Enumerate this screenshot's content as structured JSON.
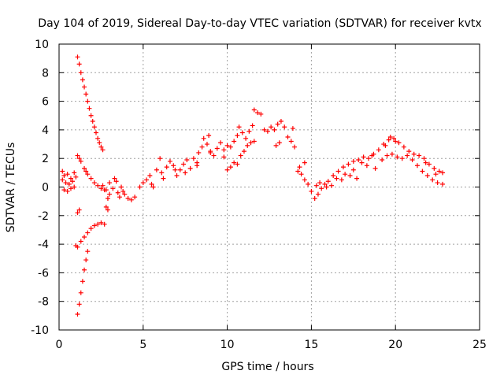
{
  "chart_data": {
    "type": "scatter",
    "title": "Day 104 of 2019, Sidereal Day-to-day VTEC variation (SDTVAR) for receiver kvtx",
    "xlabel": "GPS time / hours",
    "ylabel": "SDTVAR / TECUs",
    "xlim": [
      0,
      25
    ],
    "ylim": [
      -10,
      10
    ],
    "xticks": [
      "0",
      "5",
      "10",
      "15",
      "20",
      "25"
    ],
    "yticks": [
      "-10",
      "-8",
      "-6",
      "-4",
      "-2",
      "0",
      "2",
      "4",
      "6",
      "8",
      "10"
    ],
    "grid": true,
    "marker": "+",
    "color": "#ff0000",
    "series": [
      {
        "name": "main",
        "points": [
          [
            0.2,
            0.5
          ],
          [
            0.3,
            0.8
          ],
          [
            0.4,
            0.3
          ],
          [
            0.5,
            0.9
          ],
          [
            0.6,
            0.2
          ],
          [
            0.7,
            0.6
          ],
          [
            0.8,
            0.4
          ],
          [
            0.9,
            0.0
          ],
          [
            1.0,
            0.7
          ],
          [
            0.3,
            -0.2
          ],
          [
            0.5,
            -0.3
          ],
          [
            0.7,
            -0.1
          ],
          [
            0.2,
            1.1
          ],
          [
            0.9,
            1.0
          ],
          [
            2.6,
            0.1
          ],
          [
            2.8,
            -0.2
          ],
          [
            3.0,
            0.3
          ],
          [
            3.2,
            -0.1
          ],
          [
            3.4,
            0.4
          ],
          [
            3.5,
            -0.4
          ],
          [
            3.7,
            0.0
          ],
          [
            3.9,
            -0.5
          ],
          [
            4.1,
            -0.8
          ],
          [
            4.3,
            -0.9
          ],
          [
            4.5,
            -0.7
          ],
          [
            3.0,
            -0.5
          ],
          [
            3.3,
            0.6
          ],
          [
            3.6,
            -0.7
          ],
          [
            2.9,
            -0.8
          ],
          [
            3.8,
            -0.3
          ],
          [
            4.8,
            0.0
          ],
          [
            5.0,
            0.3
          ],
          [
            5.2,
            0.5
          ],
          [
            5.4,
            0.8
          ],
          [
            5.5,
            0.2
          ],
          [
            5.6,
            0.0
          ],
          [
            5.8,
            1.2
          ],
          [
            6.0,
            2.0
          ],
          [
            6.1,
            1.0
          ],
          [
            6.2,
            0.6
          ],
          [
            6.4,
            1.4
          ],
          [
            6.6,
            1.8
          ],
          [
            6.8,
            1.5
          ],
          [
            7.0,
            0.8
          ],
          [
            7.2,
            1.2
          ],
          [
            7.4,
            1.6
          ],
          [
            7.6,
            1.9
          ],
          [
            7.8,
            1.3
          ],
          [
            8.0,
            2.0
          ],
          [
            8.2,
            1.7
          ],
          [
            8.3,
            2.4
          ],
          [
            8.5,
            2.8
          ],
          [
            8.6,
            3.4
          ],
          [
            8.8,
            3.0
          ],
          [
            8.9,
            3.6
          ],
          [
            9.0,
            2.5
          ],
          [
            9.2,
            2.2
          ],
          [
            9.4,
            2.7
          ],
          [
            9.6,
            3.1
          ],
          [
            9.8,
            2.6
          ],
          [
            10.0,
            2.9
          ],
          [
            10.2,
            2.8
          ],
          [
            10.4,
            3.2
          ],
          [
            10.6,
            3.6
          ],
          [
            10.7,
            4.2
          ],
          [
            10.9,
            3.8
          ],
          [
            11.1,
            3.4
          ],
          [
            11.3,
            3.9
          ],
          [
            11.5,
            4.3
          ],
          [
            11.6,
            5.4
          ],
          [
            11.8,
            5.2
          ],
          [
            12.0,
            5.1
          ],
          [
            12.2,
            4.0
          ],
          [
            12.4,
            3.9
          ],
          [
            12.6,
            4.2
          ],
          [
            12.8,
            4.0
          ],
          [
            13.0,
            4.4
          ],
          [
            13.2,
            4.6
          ],
          [
            13.4,
            4.2
          ],
          [
            13.6,
            3.5
          ],
          [
            13.8,
            3.2
          ],
          [
            14.0,
            2.8
          ],
          [
            12.9,
            2.9
          ],
          [
            13.1,
            3.1
          ],
          [
            13.9,
            4.1
          ],
          [
            10.0,
            1.2
          ],
          [
            10.2,
            1.4
          ],
          [
            10.4,
            1.7
          ],
          [
            10.6,
            1.6
          ],
          [
            10.8,
            2.2
          ],
          [
            11.0,
            2.5
          ],
          [
            11.2,
            2.9
          ],
          [
            11.4,
            3.1
          ],
          [
            11.6,
            3.2
          ],
          [
            8.2,
            1.5
          ],
          [
            9.0,
            2.4
          ],
          [
            9.8,
            2.1
          ],
          [
            7.5,
            1.0
          ],
          [
            6.9,
            1.2
          ],
          [
            14.2,
            1.1
          ],
          [
            14.4,
            0.9
          ],
          [
            14.6,
            0.5
          ],
          [
            14.8,
            0.2
          ],
          [
            15.0,
            -0.3
          ],
          [
            15.2,
            -0.8
          ],
          [
            15.4,
            -0.5
          ],
          [
            15.6,
            -0.1
          ],
          [
            15.8,
            0.2
          ],
          [
            16.0,
            0.4
          ],
          [
            16.3,
            0.8
          ],
          [
            16.6,
            1.1
          ],
          [
            16.9,
            1.4
          ],
          [
            17.2,
            1.6
          ],
          [
            17.5,
            1.8
          ],
          [
            17.8,
            1.9
          ],
          [
            18.1,
            2.1
          ],
          [
            18.4,
            2.0
          ],
          [
            18.7,
            2.3
          ],
          [
            19.0,
            2.6
          ],
          [
            19.3,
            3.0
          ],
          [
            19.6,
            3.3
          ],
          [
            19.9,
            3.4
          ],
          [
            20.2,
            3.1
          ],
          [
            20.5,
            2.8
          ],
          [
            20.8,
            2.5
          ],
          [
            21.1,
            2.3
          ],
          [
            21.4,
            2.2
          ],
          [
            21.7,
            2.0
          ],
          [
            22.0,
            1.6
          ],
          [
            22.3,
            1.3
          ],
          [
            22.6,
            1.1
          ],
          [
            22.8,
            1.0
          ],
          [
            14.3,
            1.4
          ],
          [
            14.6,
            1.7
          ],
          [
            15.3,
            0.1
          ],
          [
            15.9,
            0.0
          ],
          [
            16.2,
            0.1
          ],
          [
            16.8,
            0.5
          ],
          [
            17.3,
            0.8
          ],
          [
            17.7,
            0.6
          ],
          [
            18.3,
            1.5
          ],
          [
            18.8,
            1.3
          ],
          [
            19.2,
            1.9
          ],
          [
            19.5,
            2.2
          ],
          [
            19.8,
            2.3
          ],
          [
            20.1,
            2.1
          ],
          [
            20.4,
            2.0
          ],
          [
            20.7,
            2.2
          ],
          [
            21.0,
            1.9
          ],
          [
            21.3,
            1.5
          ],
          [
            21.6,
            1.1
          ],
          [
            21.9,
            0.8
          ],
          [
            22.2,
            0.5
          ],
          [
            22.5,
            0.3
          ],
          [
            22.8,
            0.2
          ],
          [
            17.0,
            0.9
          ],
          [
            18.0,
            1.7
          ],
          [
            20.0,
            3.2
          ],
          [
            19.4,
            2.9
          ],
          [
            21.8,
            1.7
          ],
          [
            22.4,
            0.9
          ],
          [
            17.5,
            1.2
          ],
          [
            18.6,
            2.2
          ],
          [
            19.7,
            3.5
          ],
          [
            16.5,
            0.6
          ],
          [
            15.5,
            0.3
          ]
        ]
      },
      {
        "name": "upper_arc",
        "points": [
          [
            1.1,
            9.1
          ],
          [
            1.2,
            8.6
          ],
          [
            1.3,
            8.0
          ],
          [
            1.4,
            7.5
          ],
          [
            1.5,
            7.0
          ],
          [
            1.6,
            6.5
          ],
          [
            1.7,
            6.0
          ],
          [
            1.8,
            5.5
          ],
          [
            1.9,
            5.0
          ],
          [
            2.0,
            4.6
          ],
          [
            2.1,
            4.2
          ],
          [
            2.2,
            3.8
          ],
          [
            2.3,
            3.4
          ],
          [
            2.4,
            3.1
          ],
          [
            2.5,
            2.8
          ],
          [
            2.6,
            2.6
          ],
          [
            1.1,
            2.2
          ],
          [
            1.3,
            1.8
          ],
          [
            1.5,
            1.3
          ],
          [
            1.7,
            0.9
          ],
          [
            1.9,
            0.6
          ],
          [
            2.1,
            0.3
          ],
          [
            2.3,
            0.1
          ],
          [
            2.5,
            -0.1
          ],
          [
            2.7,
            -0.2
          ],
          [
            1.2,
            2.0
          ],
          [
            1.6,
            1.1
          ]
        ]
      },
      {
        "name": "lower_arc",
        "points": [
          [
            1.1,
            -8.9
          ],
          [
            1.2,
            -8.2
          ],
          [
            1.3,
            -7.4
          ],
          [
            1.4,
            -6.6
          ],
          [
            1.5,
            -5.8
          ],
          [
            1.6,
            -5.1
          ],
          [
            1.7,
            -4.5
          ],
          [
            1.1,
            -4.2
          ],
          [
            1.3,
            -3.8
          ],
          [
            1.5,
            -3.5
          ],
          [
            1.7,
            -3.2
          ],
          [
            1.9,
            -2.9
          ],
          [
            2.1,
            -2.7
          ],
          [
            2.3,
            -2.6
          ],
          [
            2.5,
            -2.5
          ],
          [
            2.7,
            -2.6
          ],
          [
            1.1,
            -1.8
          ],
          [
            1.2,
            -1.6
          ],
          [
            2.8,
            -1.4
          ],
          [
            2.9,
            -1.6
          ],
          [
            1.0,
            -4.1
          ]
        ]
      }
    ]
  }
}
